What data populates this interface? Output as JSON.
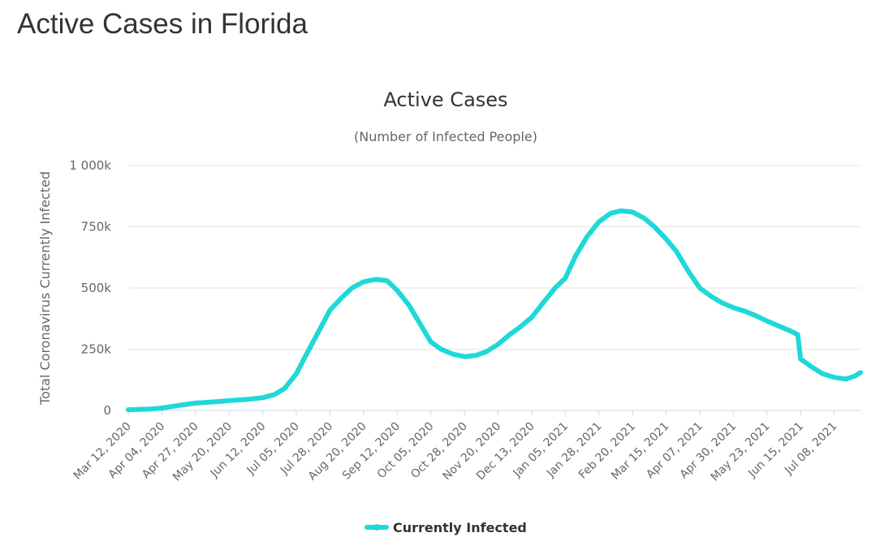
{
  "page": {
    "title": "Active Cases in Florida"
  },
  "colors": {
    "series": "#1fd8d8",
    "grid": "#e6e6e6",
    "text": "#333333",
    "muted": "#666666"
  },
  "chart_data": {
    "type": "line",
    "title": "Active Cases",
    "subtitle": "(Number of Infected People)",
    "ylabel": "Total Coronavirus Currently Infected",
    "xlabel": "",
    "ylim": [
      0,
      1000000
    ],
    "y_ticks": [
      0,
      250000,
      500000,
      750000,
      1000000
    ],
    "y_tick_labels": [
      "0",
      "250k",
      "500k",
      "750k",
      "1 000k"
    ],
    "x_range": [
      "2020-03-12",
      "2021-07-26"
    ],
    "x_tick_labels": [
      "Mar 12, 2020",
      "Apr 04, 2020",
      "Apr 27, 2020",
      "May 20, 2020",
      "Jun 12, 2020",
      "Jul 05, 2020",
      "Jul 28, 2020",
      "Aug 20, 2020",
      "Sep 12, 2020",
      "Oct 05, 2020",
      "Oct 28, 2020",
      "Nov 20, 2020",
      "Dec 13, 2020",
      "Jan 05, 2021",
      "Jan 28, 2021",
      "Feb 20, 2021",
      "Mar 15, 2021",
      "Apr 07, 2021",
      "Apr 30, 2021",
      "May 23, 2021",
      "Jun 15, 2021",
      "Jul 08, 2021"
    ],
    "legend": {
      "position": "bottom-center",
      "entries": [
        "Currently Infected"
      ]
    },
    "series": [
      {
        "name": "Currently Infected",
        "x": [
          "2020-03-12",
          "2020-03-27",
          "2020-04-04",
          "2020-04-15",
          "2020-04-27",
          "2020-05-10",
          "2020-05-20",
          "2020-06-01",
          "2020-06-12",
          "2020-06-20",
          "2020-06-27",
          "2020-07-05",
          "2020-07-12",
          "2020-07-20",
          "2020-07-28",
          "2020-08-05",
          "2020-08-12",
          "2020-08-20",
          "2020-08-28",
          "2020-09-05",
          "2020-09-12",
          "2020-09-20",
          "2020-09-28",
          "2020-10-05",
          "2020-10-12",
          "2020-10-20",
          "2020-10-28",
          "2020-11-05",
          "2020-11-12",
          "2020-11-20",
          "2020-11-28",
          "2020-12-05",
          "2020-12-13",
          "2020-12-21",
          "2020-12-29",
          "2021-01-05",
          "2021-01-12",
          "2021-01-20",
          "2021-01-28",
          "2021-02-05",
          "2021-02-12",
          "2021-02-20",
          "2021-02-28",
          "2021-03-07",
          "2021-03-15",
          "2021-03-22",
          "2021-03-30",
          "2021-04-07",
          "2021-04-15",
          "2021-04-22",
          "2021-04-30",
          "2021-05-08",
          "2021-05-16",
          "2021-05-23",
          "2021-05-31",
          "2021-06-08",
          "2021-06-13",
          "2021-06-15",
          "2021-06-22",
          "2021-06-30",
          "2021-07-08",
          "2021-07-16",
          "2021-07-22",
          "2021-07-26"
        ],
        "y": [
          3000,
          6000,
          10000,
          20000,
          30000,
          35000,
          40000,
          45000,
          52000,
          65000,
          90000,
          150000,
          230000,
          320000,
          410000,
          460000,
          500000,
          525000,
          535000,
          530000,
          490000,
          430000,
          350000,
          280000,
          250000,
          230000,
          220000,
          225000,
          240000,
          270000,
          310000,
          340000,
          380000,
          440000,
          500000,
          540000,
          630000,
          710000,
          770000,
          805000,
          815000,
          810000,
          785000,
          750000,
          700000,
          650000,
          570000,
          500000,
          465000,
          440000,
          420000,
          405000,
          385000,
          365000,
          345000,
          325000,
          310000,
          210000,
          180000,
          150000,
          135000,
          128000,
          140000,
          155000
        ]
      }
    ]
  }
}
